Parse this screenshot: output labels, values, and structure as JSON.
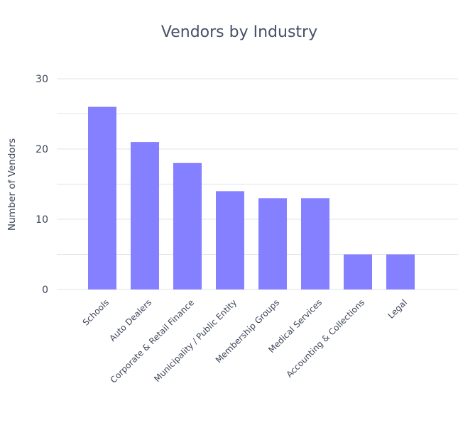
{
  "chart_data": {
    "type": "bar",
    "title": "Vendors by Industry",
    "xlabel": "",
    "ylabel": "Number of Vendors",
    "categories": [
      "Schools",
      "Auto Dealers",
      "Corporate & Retail Finance",
      "Municipality / Public Entity",
      "Membership Groups",
      "Medical Services",
      "Accounting & Collections",
      "Legal"
    ],
    "values": [
      26,
      21,
      18,
      14,
      13,
      13,
      5,
      5
    ],
    "ylim": [
      0,
      30
    ],
    "yticks": [
      "0",
      "10",
      "20",
      "30"
    ],
    "grid": true,
    "bar_color": "#8580ff"
  }
}
